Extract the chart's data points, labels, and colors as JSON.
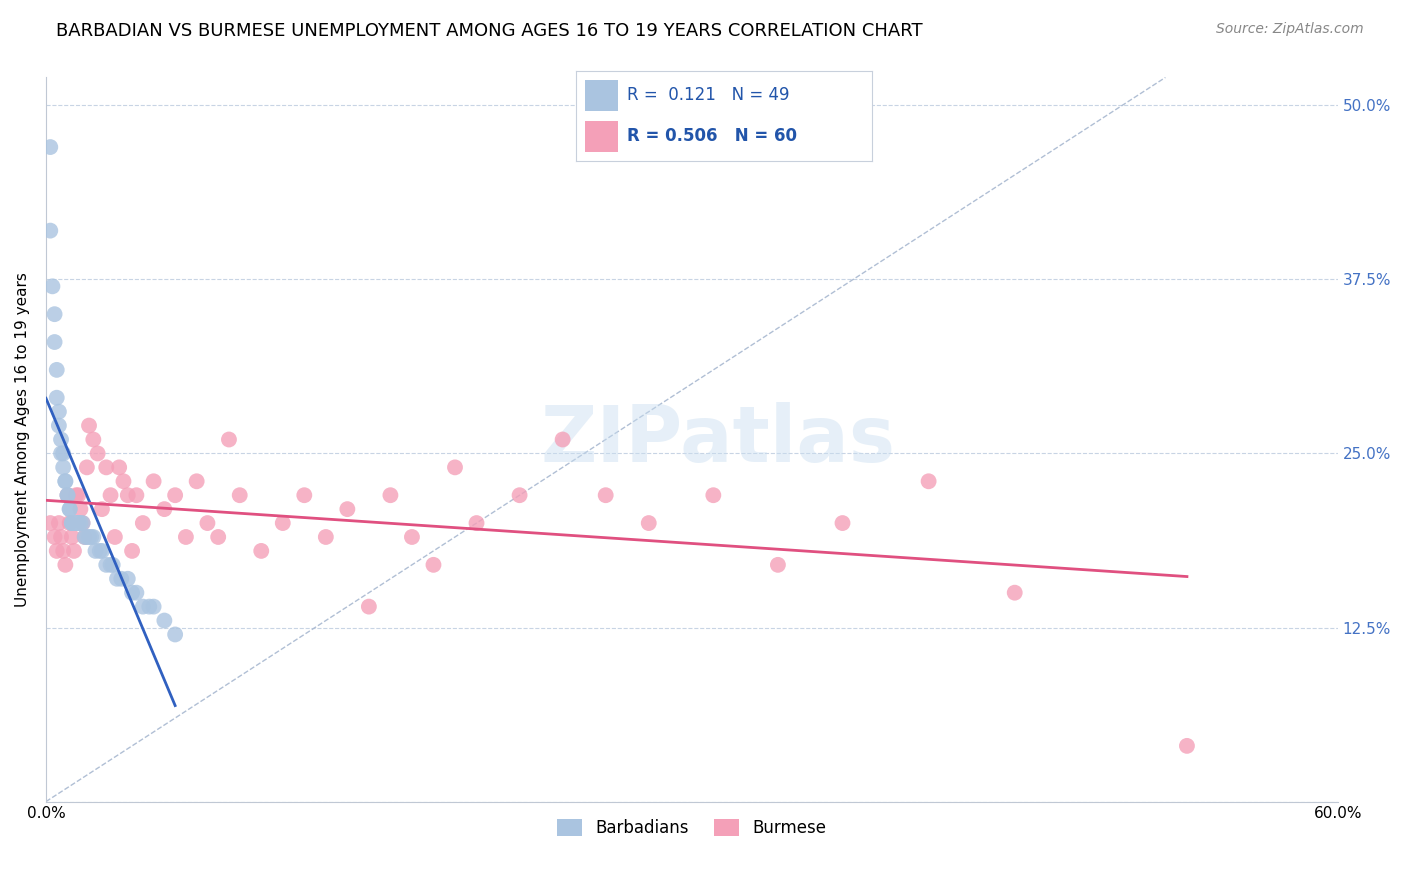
{
  "title": "BARBADIAN VS BURMESE UNEMPLOYMENT AMONG AGES 16 TO 19 YEARS CORRELATION CHART",
  "source": "Source: ZipAtlas.com",
  "ylabel": "Unemployment Among Ages 16 to 19 years",
  "xlim": [
    0.0,
    0.6
  ],
  "ylim": [
    0.0,
    0.52
  ],
  "barbadian_color": "#aac4e0",
  "burmese_color": "#f4a0b8",
  "barbadian_line_color": "#3060c0",
  "burmese_line_color": "#e05080",
  "ref_line_color": "#a8b8d0",
  "barbadian_x": [
    0.002,
    0.002,
    0.003,
    0.004,
    0.004,
    0.005,
    0.005,
    0.006,
    0.006,
    0.007,
    0.007,
    0.008,
    0.008,
    0.009,
    0.009,
    0.01,
    0.01,
    0.011,
    0.011,
    0.012,
    0.012,
    0.013,
    0.013,
    0.014,
    0.015,
    0.015,
    0.016,
    0.017,
    0.018,
    0.019,
    0.02,
    0.021,
    0.022,
    0.023,
    0.025,
    0.026,
    0.028,
    0.03,
    0.031,
    0.033,
    0.035,
    0.038,
    0.04,
    0.042,
    0.045,
    0.048,
    0.05,
    0.055,
    0.06
  ],
  "barbadian_y": [
    0.47,
    0.41,
    0.37,
    0.35,
    0.33,
    0.31,
    0.29,
    0.28,
    0.27,
    0.26,
    0.25,
    0.25,
    0.24,
    0.23,
    0.23,
    0.22,
    0.22,
    0.21,
    0.21,
    0.2,
    0.2,
    0.2,
    0.2,
    0.2,
    0.2,
    0.2,
    0.2,
    0.2,
    0.19,
    0.19,
    0.19,
    0.19,
    0.19,
    0.18,
    0.18,
    0.18,
    0.17,
    0.17,
    0.17,
    0.16,
    0.16,
    0.16,
    0.15,
    0.15,
    0.14,
    0.14,
    0.14,
    0.13,
    0.12
  ],
  "burmese_x": [
    0.002,
    0.004,
    0.005,
    0.006,
    0.007,
    0.008,
    0.009,
    0.01,
    0.011,
    0.012,
    0.013,
    0.014,
    0.015,
    0.016,
    0.017,
    0.018,
    0.019,
    0.02,
    0.022,
    0.024,
    0.026,
    0.028,
    0.03,
    0.032,
    0.034,
    0.036,
    0.038,
    0.04,
    0.042,
    0.045,
    0.05,
    0.055,
    0.06,
    0.065,
    0.07,
    0.075,
    0.08,
    0.085,
    0.09,
    0.1,
    0.11,
    0.12,
    0.13,
    0.14,
    0.15,
    0.16,
    0.17,
    0.18,
    0.19,
    0.2,
    0.22,
    0.24,
    0.26,
    0.28,
    0.31,
    0.34,
    0.37,
    0.41,
    0.45,
    0.53
  ],
  "burmese_y": [
    0.2,
    0.19,
    0.18,
    0.2,
    0.19,
    0.18,
    0.17,
    0.22,
    0.2,
    0.19,
    0.18,
    0.22,
    0.22,
    0.21,
    0.2,
    0.19,
    0.24,
    0.27,
    0.26,
    0.25,
    0.21,
    0.24,
    0.22,
    0.19,
    0.24,
    0.23,
    0.22,
    0.18,
    0.22,
    0.2,
    0.23,
    0.21,
    0.22,
    0.19,
    0.23,
    0.2,
    0.19,
    0.26,
    0.22,
    0.18,
    0.2,
    0.22,
    0.19,
    0.21,
    0.14,
    0.22,
    0.19,
    0.17,
    0.24,
    0.2,
    0.22,
    0.26,
    0.22,
    0.2,
    0.22,
    0.17,
    0.2,
    0.23,
    0.15,
    0.04
  ],
  "title_fontsize": 13,
  "axis_label_fontsize": 11,
  "tick_fontsize": 11,
  "source_fontsize": 10
}
